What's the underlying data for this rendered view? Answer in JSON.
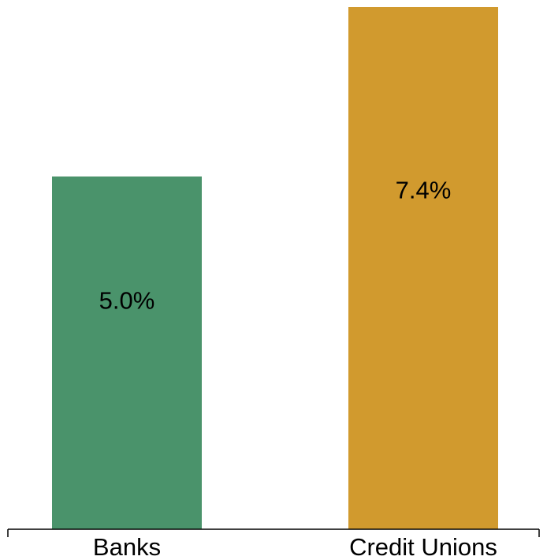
{
  "chart_data": {
    "type": "bar",
    "categories": [
      "Banks",
      "Credit Unions"
    ],
    "values": [
      5.0,
      7.4
    ],
    "data_labels": [
      "5.0%",
      "7.4%"
    ],
    "colors": [
      "#4a936b",
      "#d19a2e"
    ],
    "ylim": [
      0,
      7.4
    ],
    "grid": false,
    "title": "",
    "xlabel": "",
    "ylabel": ""
  }
}
